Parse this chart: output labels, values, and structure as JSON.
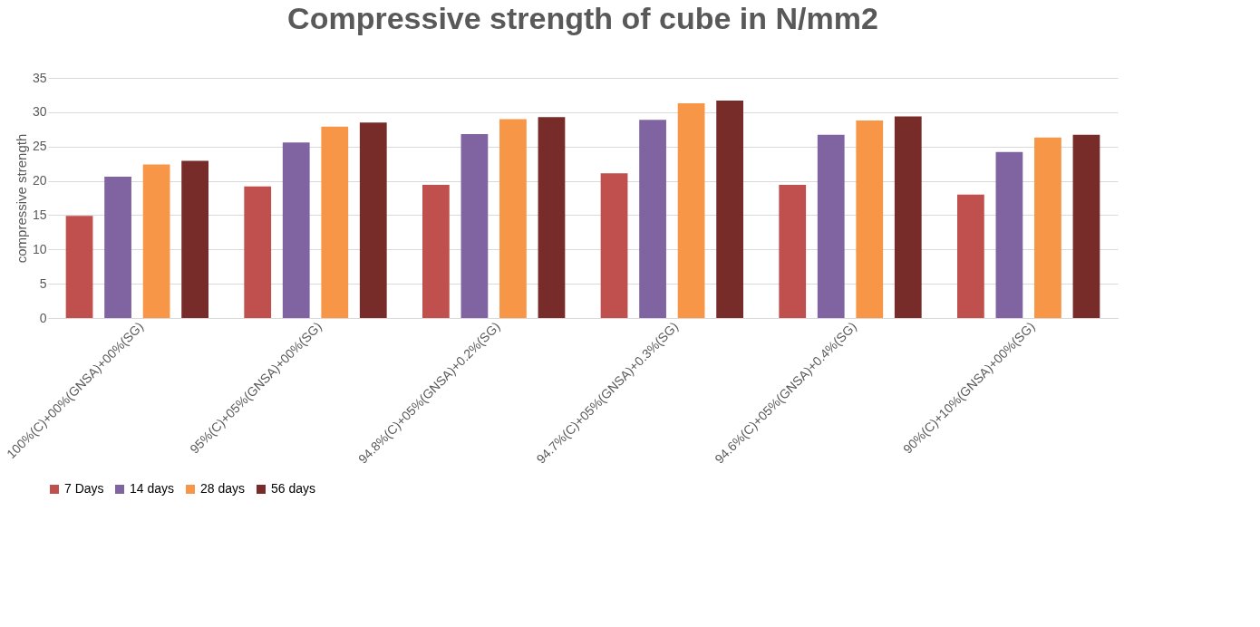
{
  "chart_data": {
    "type": "bar",
    "title": "Compressive strength of cube in N/mm2",
    "ylabel": "compressive strength",
    "categories": [
      "100%(C)+00%(GNSA)+00%(SG)",
      "95%(C)+05%(GNSA)+00%(SG)",
      "94.8%(C)+05%(GNSA)+0.2%(SG)",
      "94.7%(C)+05%(GNSA)+0.3%(SG)",
      "94.6%(C)+05%(GNSA)+0.4%(SG)",
      "90%(C)+10%(GNSA)+00%(SG)"
    ],
    "series": [
      {
        "name": "7 Days",
        "color": "#c0504d",
        "values": [
          14.9,
          19.2,
          19.4,
          21.1,
          19.4,
          18.0
        ]
      },
      {
        "name": "14 days",
        "color": "#8064a2",
        "values": [
          20.6,
          25.6,
          26.8,
          28.9,
          26.7,
          24.2
        ]
      },
      {
        "name": "28 days",
        "color": "#f79646",
        "values": [
          22.4,
          27.9,
          29.0,
          31.3,
          28.8,
          26.3
        ]
      },
      {
        "name": "56 days",
        "color": "#772c2a",
        "values": [
          22.9,
          28.5,
          29.3,
          31.7,
          29.4,
          26.7
        ]
      }
    ],
    "ylim": [
      0,
      35
    ],
    "yticks": [
      0,
      5,
      10,
      15,
      20,
      25,
      30,
      35
    ],
    "grid": "y",
    "legend": "bottom"
  }
}
